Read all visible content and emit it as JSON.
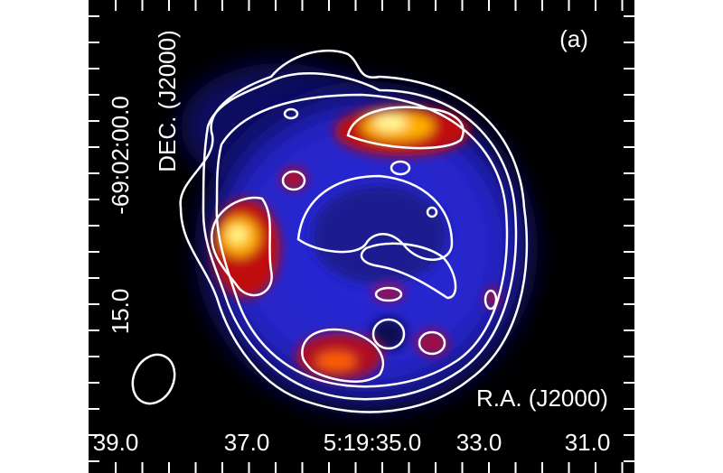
{
  "panel_label": "(a)",
  "y_axis": {
    "label": "DEC. (J2000)",
    "tick_labels": [
      "-69:02:00.0",
      "15.0"
    ]
  },
  "x_axis": {
    "label": "R.A. (J2000)",
    "tick_labels": [
      "39.0",
      "37.0",
      "5:19:35.0",
      "33.0",
      "31.0"
    ]
  }
}
